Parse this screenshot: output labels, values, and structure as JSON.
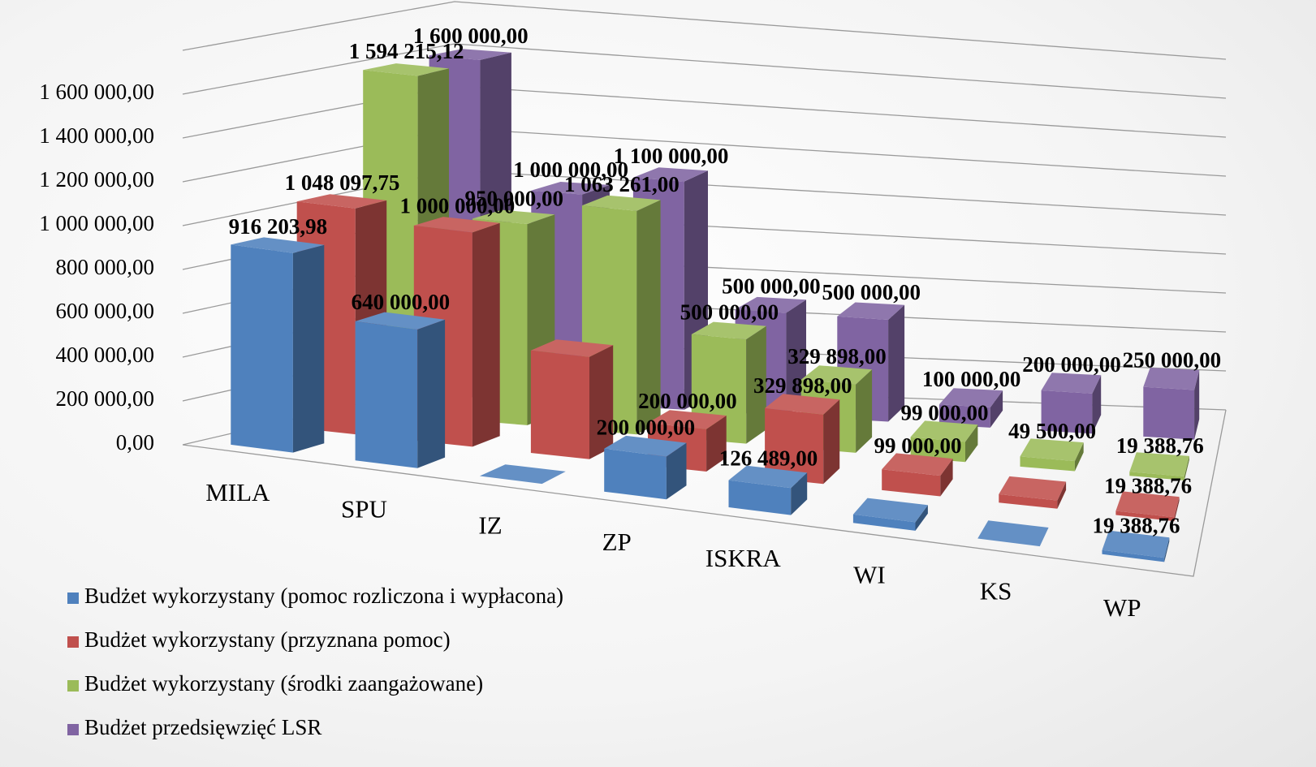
{
  "chart_data": {
    "type": "bar3d",
    "categories": [
      "MILA",
      "SPU",
      "IZ",
      "ZP",
      "ISKRA",
      "WI",
      "KS",
      "WP"
    ],
    "series": [
      {
        "name": "Budżet wykorzystany (pomoc rozliczona i wypłacona)",
        "color": "#4f81bd",
        "values": [
          916203.98,
          640000,
          0,
          200000,
          126489,
          40000,
          0,
          19388.76
        ],
        "value_labels": [
          "916 203,98",
          "640 000,00",
          null,
          "200 000,00",
          "126 489,00",
          null,
          null,
          "19 388,76"
        ]
      },
      {
        "name": "Budżet wykorzystany (przyznana pomoc)",
        "color": "#c0504d",
        "values": [
          1048097.75,
          1000000,
          480000,
          200000,
          329898,
          99000,
          40000,
          19388.76
        ],
        "value_labels": [
          "1 048 097,75",
          "1 000 000,00",
          null,
          "200 000,00",
          "329 898,00",
          "99 000,00",
          null,
          "19 388,76"
        ]
      },
      {
        "name": "Budżet wykorzystany (środki zaangażowane)",
        "color": "#9bbb59",
        "values": [
          1594215.12,
          950000,
          1063261,
          500000,
          329898,
          99000,
          49500,
          19388.76
        ],
        "value_labels": [
          "1 594 215,12",
          "950 000,00",
          "1 063 261,00",
          "500 000,00",
          "329 898,00",
          "99 000,00",
          "49 500,00",
          "19 388,76"
        ]
      },
      {
        "name": "Budżet przedsięwzięć LSR",
        "color": "#8064a2",
        "values": [
          1600000,
          1000000,
          1100000,
          500000,
          500000,
          100000,
          200000,
          250000
        ],
        "value_labels": [
          "1 600 000,00",
          "1 000 000,00",
          "1 100 000,00",
          "500 000,00",
          "500 000,00",
          "100 000,00",
          "200 000,00",
          "250 000,00"
        ]
      }
    ],
    "ylim": [
      0,
      1800000
    ],
    "yticks": [
      {
        "value": 0,
        "label": "0,00"
      },
      {
        "value": 200000,
        "label": "200 000,00"
      },
      {
        "value": 400000,
        "label": "400 000,00"
      },
      {
        "value": 600000,
        "label": "600 000,00"
      },
      {
        "value": 800000,
        "label": "800 000,00"
      },
      {
        "value": 1000000,
        "label": "1 000 000,00"
      },
      {
        "value": 1200000,
        "label": "1 200 000,00"
      },
      {
        "value": 1400000,
        "label": "1 400 000,00"
      },
      {
        "value": 1600000,
        "label": "1 600 000,00"
      }
    ],
    "grid": true,
    "legend": "bottom-left"
  }
}
